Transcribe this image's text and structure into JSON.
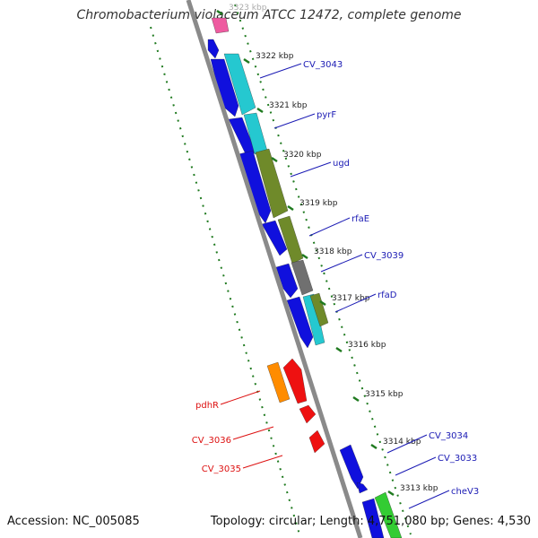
{
  "title": "Chromobacterium violaceum ATCC 12472, complete genome",
  "footer": {
    "accession": "Accession: NC_005085",
    "summary": "Topology: circular; Length: 4,751,080 bp; Genes: 4,530"
  },
  "colors": {
    "backbone": "#8a8a8a",
    "tick": "#1f7a1f",
    "blue_cds": "#1010dd",
    "label_blue": "#1a1ab4",
    "label_red": "#dd1111",
    "cyan": "#25c8d0",
    "olive": "#6f8a2a",
    "grey": "#707070",
    "orange": "#ff8c00",
    "red": "#ee1111",
    "pink": "#ee5ba0",
    "green": "#33cc33"
  },
  "kbp_labels": [
    {
      "text": "3323 kbp"
    },
    {
      "text": "3322 kbp"
    },
    {
      "text": "3321 kbp"
    },
    {
      "text": "3320 kbp"
    },
    {
      "text": "3319 kbp"
    },
    {
      "text": "3318 kbp"
    },
    {
      "text": "3317 kbp"
    },
    {
      "text": "3316 kbp"
    },
    {
      "text": "3315 kbp"
    },
    {
      "text": "3314 kbp"
    },
    {
      "text": "3313 kbp"
    }
  ],
  "gene_labels_right": [
    {
      "text": "CV_3043"
    },
    {
      "text": "pyrF"
    },
    {
      "text": "ugd"
    },
    {
      "text": "rfaE"
    },
    {
      "text": "CV_3039"
    },
    {
      "text": "rfaD"
    },
    {
      "text": "CV_3034"
    },
    {
      "text": "CV_3033"
    },
    {
      "text": "cheV3"
    }
  ],
  "gene_labels_left": [
    {
      "text": "pdhR"
    },
    {
      "text": "CV_3036"
    },
    {
      "text": "CV_3035"
    }
  ]
}
